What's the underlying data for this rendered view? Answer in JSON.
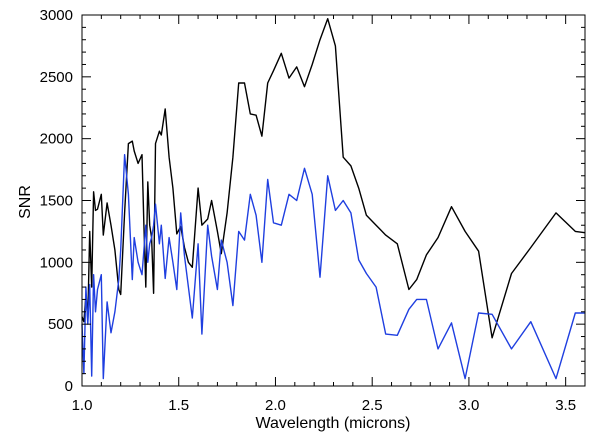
{
  "chart_data": {
    "type": "line",
    "xlabel": "Wavelength (microns)",
    "ylabel": "SNR",
    "xlim": [
      1.0,
      3.6
    ],
    "ylim": [
      0,
      3000
    ],
    "grid": false,
    "legend": "none",
    "x_ticks": [
      1.0,
      1.5,
      2.0,
      2.5,
      3.0,
      3.5
    ],
    "x_tick_labels": [
      "1.0",
      "1.5",
      "2.0",
      "2.5",
      "3.0",
      "3.5"
    ],
    "y_ticks": [
      0,
      500,
      1000,
      1500,
      2000,
      2500,
      3000
    ],
    "y_tick_labels": [
      "0",
      "500",
      "1000",
      "1500",
      "2000",
      "2500",
      "3000"
    ],
    "series": [
      {
        "color": "#000000",
        "x": [
          1.0,
          1.01,
          1.02,
          1.03,
          1.04,
          1.05,
          1.06,
          1.07,
          1.08,
          1.1,
          1.11,
          1.13,
          1.15,
          1.17,
          1.19,
          1.2,
          1.22,
          1.24,
          1.26,
          1.27,
          1.29,
          1.31,
          1.32,
          1.33,
          1.34,
          1.35,
          1.36,
          1.37,
          1.38,
          1.4,
          1.41,
          1.43,
          1.45,
          1.47,
          1.49,
          1.51,
          1.53,
          1.55,
          1.57,
          1.6,
          1.62,
          1.65,
          1.67,
          1.7,
          1.72,
          1.75,
          1.78,
          1.81,
          1.84,
          1.87,
          1.9,
          1.93,
          1.96,
          1.99,
          2.03,
          2.07,
          2.11,
          2.15,
          2.19,
          2.23,
          2.27,
          2.31,
          2.35,
          2.39,
          2.43,
          2.47,
          2.52,
          2.57,
          2.63,
          2.69,
          2.73,
          2.78,
          2.84,
          2.91,
          2.98,
          3.05,
          3.12,
          3.22,
          3.32,
          3.45,
          3.55,
          3.6
        ],
        "values": [
          560,
          520,
          730,
          540,
          1250,
          800,
          1570,
          1420,
          1430,
          1550,
          1220,
          1480,
          1300,
          1100,
          780,
          740,
          1400,
          1960,
          1980,
          1900,
          1800,
          1870,
          1300,
          800,
          1650,
          1300,
          1200,
          750,
          1960,
          2060,
          2030,
          2240,
          1850,
          1600,
          1230,
          1290,
          1120,
          1000,
          960,
          1600,
          1300,
          1350,
          1500,
          1250,
          1070,
          1400,
          1850,
          2450,
          2450,
          2200,
          2190,
          2020,
          2450,
          2550,
          2690,
          2490,
          2580,
          2420,
          2600,
          2800,
          2970,
          2750,
          1850,
          1780,
          1600,
          1380,
          1300,
          1220,
          1150,
          780,
          860,
          1060,
          1200,
          1450,
          1250,
          1090,
          390,
          910,
          1120,
          1400,
          1250,
          1240
        ]
      },
      {
        "color": "#1f3fe0",
        "x": [
          1.0,
          1.01,
          1.02,
          1.03,
          1.04,
          1.05,
          1.06,
          1.07,
          1.08,
          1.1,
          1.11,
          1.13,
          1.15,
          1.17,
          1.19,
          1.2,
          1.22,
          1.24,
          1.26,
          1.27,
          1.29,
          1.31,
          1.32,
          1.33,
          1.34,
          1.35,
          1.36,
          1.37,
          1.38,
          1.4,
          1.41,
          1.43,
          1.45,
          1.47,
          1.49,
          1.51,
          1.53,
          1.55,
          1.57,
          1.6,
          1.62,
          1.65,
          1.67,
          1.7,
          1.72,
          1.75,
          1.78,
          1.81,
          1.84,
          1.87,
          1.9,
          1.93,
          1.96,
          1.99,
          2.03,
          2.07,
          2.11,
          2.15,
          2.19,
          2.23,
          2.27,
          2.31,
          2.35,
          2.39,
          2.43,
          2.47,
          2.52,
          2.57,
          2.63,
          2.69,
          2.73,
          2.78,
          2.84,
          2.91,
          2.98,
          3.05,
          3.12,
          3.22,
          3.32,
          3.45,
          3.55,
          3.6
        ],
        "values": [
          500,
          100,
          800,
          500,
          820,
          80,
          900,
          600,
          780,
          900,
          60,
          680,
          430,
          600,
          860,
          1100,
          1870,
          1550,
          860,
          1200,
          1000,
          900,
          1100,
          1300,
          1000,
          1150,
          1200,
          1300,
          1470,
          1150,
          1300,
          870,
          1200,
          1000,
          780,
          1400,
          1050,
          800,
          550,
          1150,
          420,
          1300,
          1050,
          780,
          1180,
          1000,
          650,
          1250,
          1180,
          1550,
          1380,
          1000,
          1670,
          1320,
          1300,
          1550,
          1500,
          1760,
          1550,
          880,
          1700,
          1420,
          1500,
          1400,
          1020,
          910,
          800,
          420,
          410,
          620,
          700,
          700,
          300,
          510,
          60,
          590,
          580,
          300,
          520,
          60,
          590,
          590
        ]
      }
    ]
  }
}
